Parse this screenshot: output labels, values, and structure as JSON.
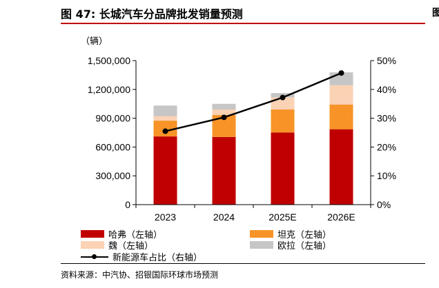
{
  "figure_title": "图 47: 长城汽车分品牌批发销量预测",
  "right_edge_mark": "图",
  "unit_label": "（辆）",
  "source": "资料来源：中汽协、招银国际环球市场预测",
  "colors": {
    "haval": "#c00000",
    "tank": "#f79327",
    "wey": "#fbd2b4",
    "ora": "#c6c6c6",
    "line": "#000000",
    "title_rule": "#c00000"
  },
  "legend": {
    "haval": "哈弗（左轴）",
    "tank": "坦克（左轴）",
    "wey": "魏（左轴）",
    "ora": "欧拉（左轴）",
    "nev_share": "新能源车占比（右轴）"
  },
  "chart_data": {
    "type": "bar",
    "stacked": true,
    "categories": [
      "2023",
      "2024",
      "2025E",
      "2026E"
    ],
    "series": [
      {
        "name": "哈弗（左轴）",
        "axis": "left",
        "values": [
          710000,
          705000,
          752000,
          785000
        ]
      },
      {
        "name": "坦克（左轴）",
        "axis": "left",
        "values": [
          165000,
          230000,
          240000,
          258000
        ]
      },
      {
        "name": "魏（左轴）",
        "axis": "left",
        "values": [
          47000,
          55000,
          125000,
          200000
        ]
      },
      {
        "name": "欧拉（左轴）",
        "axis": "left",
        "values": [
          110000,
          60000,
          45000,
          135000
        ]
      },
      {
        "name": "新能源车占比（右轴）",
        "axis": "right",
        "type": "line",
        "values": [
          25.5,
          30.3,
          37.2,
          45.7
        ]
      }
    ],
    "y_left": {
      "ylim": [
        0,
        1500000
      ],
      "ticks": [
        "0",
        "300,000",
        "600,000",
        "900,000",
        "1,200,000",
        "1,500,000"
      ]
    },
    "y_right": {
      "ylim": [
        0,
        50
      ],
      "ticks": [
        "0%",
        "10%",
        "20%",
        "30%",
        "40%",
        "50%"
      ]
    },
    "grid": false,
    "legend_position": "bottom"
  }
}
